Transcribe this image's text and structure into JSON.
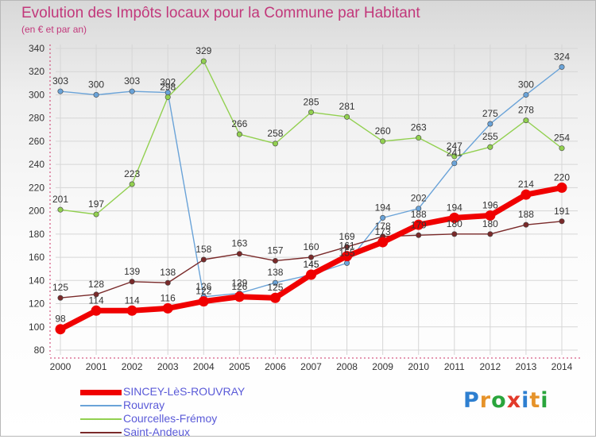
{
  "title": "Evolution des Impôts locaux pour la Commune par Habitant",
  "subtitle": "(en € et par an)",
  "logo": {
    "text": "Proxiti",
    "colors": [
      "#2e7fd0",
      "#e6932a",
      "#2aa53c",
      "#e23a2a",
      "#2e7fd0",
      "#e6932a",
      "#2aa53c"
    ]
  },
  "chart_data": {
    "type": "line",
    "x": [
      2000,
      2001,
      2002,
      2003,
      2004,
      2005,
      2006,
      2007,
      2008,
      2009,
      2010,
      2011,
      2012,
      2013,
      2014
    ],
    "ylim": [
      80,
      340
    ],
    "yticks": [
      80,
      100,
      120,
      140,
      160,
      180,
      200,
      220,
      240,
      260,
      280,
      300,
      320,
      340
    ],
    "grid": true,
    "legend_position": "bottom",
    "series": [
      {
        "name": "SINCEY-LèS-ROUVRAY",
        "color": "#f00000",
        "values": [
          98,
          114,
          114,
          116,
          122,
          126,
          125,
          145,
          161,
          173,
          188,
          194,
          196,
          214,
          220
        ]
      },
      {
        "name": "Rouvray",
        "color": "#6aa3d8",
        "values": [
          303,
          300,
          303,
          302,
          126,
          129,
          138,
          145,
          155,
          194,
          202,
          241,
          275,
          300,
          324
        ]
      },
      {
        "name": "Courcelles-Frémoy",
        "color": "#92d050",
        "values": [
          201,
          197,
          223,
          298,
          329,
          266,
          258,
          285,
          281,
          260,
          263,
          247,
          255,
          278,
          254
        ]
      },
      {
        "name": "Saint-Andeux",
        "color": "#7a2a2a",
        "values": [
          125,
          128,
          139,
          138,
          158,
          163,
          157,
          160,
          169,
          178,
          179,
          180,
          180,
          188,
          191
        ]
      }
    ]
  }
}
